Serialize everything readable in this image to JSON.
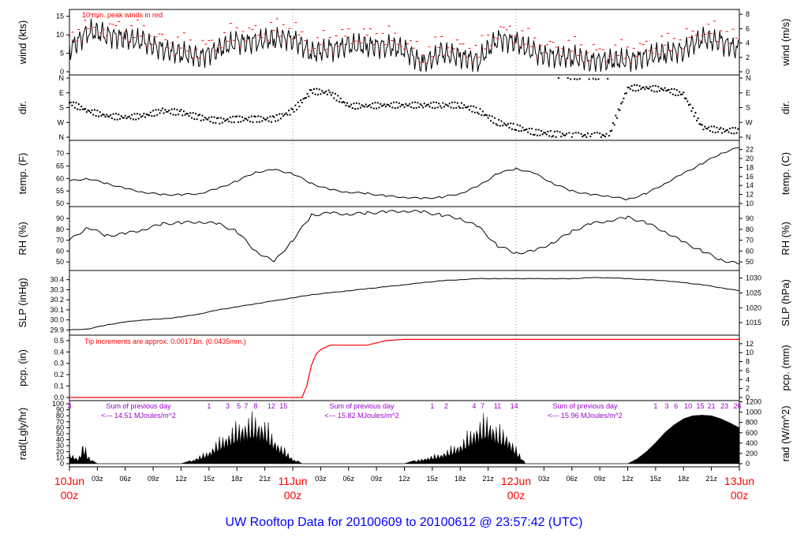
{
  "footer": {
    "title": "UW Rooftop Data for 20100609  to  20100612 @ 23:57:42  (UTC)"
  },
  "colors": {
    "accent_red": "#ff0000",
    "footer_blue": "#0000ff",
    "annotation_magenta": "#9900cc",
    "trace_black": "#000000"
  },
  "chart_data": [
    {
      "type": "line",
      "panel": "wind",
      "ylabel": "wind (kts)",
      "ylabel_right": "wind (m/s)",
      "ylim": [
        0,
        16
      ],
      "yticks": [
        0,
        5,
        10,
        15
      ],
      "yticks_right": [
        0,
        2,
        4,
        6,
        8
      ],
      "annotation": "10 min. peak winds in red",
      "x_hours": [
        0,
        2,
        4,
        6,
        8,
        10,
        12,
        14,
        16,
        18,
        20,
        22,
        24,
        26,
        28,
        30,
        32,
        34,
        36,
        38,
        40,
        42,
        44,
        46,
        48,
        50,
        52,
        54,
        56,
        58,
        60,
        62,
        64,
        66,
        68,
        70,
        72
      ],
      "series": [
        {
          "values": [
            6,
            11,
            10,
            9,
            8,
            6,
            5,
            4,
            6,
            8,
            8,
            9,
            9,
            5,
            6,
            7,
            7,
            7,
            6,
            2,
            5,
            4,
            3,
            9,
            8,
            5,
            4,
            4,
            3,
            3,
            3,
            4,
            5,
            6,
            9,
            8,
            6
          ]
        }
      ]
    },
    {
      "type": "scatter",
      "panel": "direction",
      "ylabel": "dir.",
      "ylabel_right": "dir.",
      "ytick_labels": [
        "N",
        "E",
        "S",
        "W",
        "N"
      ],
      "ytick_degrees": [
        0,
        90,
        180,
        270,
        360
      ],
      "x_hours": [
        0,
        2,
        4,
        6,
        8,
        10,
        12,
        14,
        16,
        18,
        20,
        22,
        24,
        26,
        28,
        30,
        32,
        34,
        36,
        38,
        40,
        42,
        44,
        46,
        48,
        50,
        52,
        54,
        56,
        58,
        60,
        62,
        64,
        66,
        68,
        70,
        72
      ],
      "series": [
        {
          "values": [
            150,
            200,
            230,
            240,
            230,
            200,
            210,
            240,
            260,
            250,
            250,
            250,
            200,
            80,
            90,
            170,
            170,
            165,
            165,
            165,
            165,
            165,
            200,
            270,
            300,
            330,
            340,
            350,
            350,
            350,
            60,
            60,
            70,
            100,
            300,
            320,
            320
          ]
        }
      ]
    },
    {
      "type": "line",
      "panel": "temperature",
      "ylabel": "temp. (F)",
      "ylabel_right": "temp. (C)",
      "ylim": [
        50,
        74
      ],
      "yticks": [
        50,
        55,
        60,
        65,
        70
      ],
      "yticks_right": [
        10,
        12,
        14,
        16,
        18,
        20,
        22
      ],
      "x_hours": [
        0,
        2,
        4,
        6,
        8,
        10,
        12,
        14,
        16,
        18,
        20,
        22,
        24,
        26,
        28,
        30,
        32,
        34,
        36,
        38,
        40,
        42,
        44,
        46,
        48,
        50,
        52,
        54,
        56,
        58,
        60,
        62,
        64,
        66,
        68,
        70,
        72
      ],
      "series": [
        {
          "values": [
            59,
            60,
            58,
            56,
            54.5,
            53.5,
            53.5,
            54,
            56,
            59,
            62.5,
            63.5,
            62,
            58,
            55.5,
            54.5,
            54,
            53,
            52.5,
            52,
            52.5,
            54,
            57,
            62,
            64,
            62,
            58,
            55,
            53.5,
            53,
            51.5,
            54,
            58,
            62,
            66,
            70,
            72.5
          ]
        }
      ]
    },
    {
      "type": "line",
      "panel": "relative_humidity",
      "ylabel": "RH (%)",
      "ylabel_right": "RH (%)",
      "ylim": [
        45,
        98
      ],
      "yticks": [
        50,
        60,
        70,
        80,
        90
      ],
      "yticks_right": [
        50,
        60,
        70,
        80,
        90
      ],
      "x_hours": [
        0,
        2,
        4,
        6,
        8,
        10,
        12,
        14,
        16,
        18,
        20,
        22,
        24,
        26,
        28,
        30,
        32,
        34,
        36,
        38,
        40,
        42,
        44,
        46,
        48,
        50,
        52,
        54,
        56,
        58,
        60,
        62,
        64,
        66,
        68,
        70,
        72
      ],
      "series": [
        {
          "values": [
            70,
            82,
            74,
            76,
            80,
            85,
            86,
            87,
            85,
            78,
            60,
            50,
            70,
            93,
            95,
            94,
            95,
            96,
            97,
            96,
            93,
            90,
            82,
            65,
            58,
            60,
            68,
            78,
            85,
            88,
            91,
            86,
            78,
            68,
            60,
            52,
            48
          ]
        }
      ]
    },
    {
      "type": "line",
      "panel": "sea_level_pressure",
      "ylabel": "SLP (inHg)",
      "ylabel_right": "SLP (hPa)",
      "ylim": [
        29.88,
        30.46
      ],
      "yticks": [
        29.9,
        30.0,
        30.1,
        30.2,
        30.3,
        30.4
      ],
      "ytick_labels": [
        "29.9",
        "30.0",
        "30.1",
        "30.2",
        "30.3",
        "30.4"
      ],
      "yticks_right_hpa": [
        1015,
        1020,
        1025,
        1030
      ],
      "x_hours": [
        0,
        2,
        4,
        6,
        8,
        10,
        12,
        14,
        16,
        18,
        20,
        22,
        24,
        26,
        28,
        30,
        32,
        34,
        36,
        38,
        40,
        42,
        44,
        46,
        48,
        50,
        52,
        54,
        56,
        58,
        60,
        62,
        64,
        66,
        68,
        70,
        72
      ],
      "series": [
        {
          "values": [
            29.9,
            29.91,
            29.95,
            29.98,
            30.0,
            30.01,
            30.03,
            30.06,
            30.1,
            30.13,
            30.16,
            30.19,
            30.22,
            30.25,
            30.27,
            30.29,
            30.31,
            30.33,
            30.35,
            30.37,
            30.39,
            30.4,
            30.41,
            30.41,
            30.41,
            30.41,
            30.41,
            30.41,
            30.42,
            30.42,
            30.41,
            30.4,
            30.39,
            30.37,
            30.35,
            30.32,
            30.29
          ]
        }
      ]
    },
    {
      "type": "line",
      "panel": "precipitation",
      "ylabel": "pcp. (in)",
      "ylabel_right": "pcp. (mm)",
      "ylim": [
        0,
        0.52
      ],
      "yticks": [
        0.0,
        0.1,
        0.2,
        0.3,
        0.4,
        0.5
      ],
      "ytick_labels": [
        "0.0",
        "0.1",
        "0.2",
        "0.3",
        "0.4",
        "0.5"
      ],
      "yticks_right": [
        0,
        2,
        4,
        6,
        8,
        10,
        12
      ],
      "annotation": "Tip increments are approx. 0.00171in. (0.0435mm.)",
      "x_hours": [
        0,
        24,
        25.0,
        25.5,
        26.0,
        26.5,
        27.0,
        28.0,
        30.0,
        32.0,
        33.0,
        34.0,
        36.0,
        72.0
      ],
      "series": [
        {
          "values": [
            0,
            0,
            0,
            0.1,
            0.28,
            0.38,
            0.42,
            0.46,
            0.46,
            0.46,
            0.48,
            0.5,
            0.51,
            0.51
          ]
        }
      ]
    },
    {
      "type": "area",
      "panel": "solar_radiation",
      "ylabel": "rad(Lgly/hr)",
      "ylabel_right": "rad (W/m^2)",
      "ylim": [
        0,
        100
      ],
      "yticks": [
        0,
        10,
        20,
        30,
        40,
        50,
        60,
        70,
        80,
        90,
        100
      ],
      "yticks_right": [
        0,
        200,
        400,
        600,
        800,
        1000,
        1200
      ],
      "daily_totals": [
        {
          "label": "Sum of previous day",
          "value": "<--- 14.51 MJoules/m^2"
        },
        {
          "label": "Sum of previous day",
          "value": "<--- 15.82 MJoules/m^2"
        },
        {
          "label": "Sum of previous day",
          "value": "<--- 15.96 MJoules/m^2"
        }
      ],
      "uv_index_labels": [
        {
          "hour": 0,
          "text": "3"
        },
        {
          "hour": 15,
          "text": "1"
        },
        {
          "hour": 17,
          "text": "3"
        },
        {
          "hour": 18.2,
          "text": "5"
        },
        {
          "hour": 19,
          "text": "7"
        },
        {
          "hour": 20,
          "text": "8"
        },
        {
          "hour": 21.7,
          "text": "12"
        },
        {
          "hour": 23,
          "text": "15"
        },
        {
          "hour": 39,
          "text": "1"
        },
        {
          "hour": 40.5,
          "text": "2"
        },
        {
          "hour": 43.5,
          "text": "4"
        },
        {
          "hour": 44.4,
          "text": "7"
        },
        {
          "hour": 46,
          "text": "11"
        },
        {
          "hour": 47.8,
          "text": "14"
        },
        {
          "hour": 63,
          "text": "1"
        },
        {
          "hour": 64.2,
          "text": "3"
        },
        {
          "hour": 65.2,
          "text": "6"
        },
        {
          "hour": 66.5,
          "text": "10"
        },
        {
          "hour": 67.8,
          "text": "15"
        },
        {
          "hour": 69,
          "text": "21"
        },
        {
          "hour": 70.4,
          "text": "23"
        },
        {
          "hour": 71.8,
          "text": "26"
        }
      ],
      "x_hours": [
        0,
        1,
        1.5,
        2,
        2.5,
        3,
        12,
        13,
        14,
        15,
        16,
        17,
        18,
        19,
        20,
        21,
        22,
        23,
        24,
        25,
        36,
        37,
        38,
        39,
        40,
        41,
        42,
        43,
        44,
        45,
        46,
        47,
        48,
        49,
        60,
        61,
        62,
        63,
        64,
        65,
        66,
        67,
        68,
        69,
        70,
        71,
        72
      ],
      "series": [
        {
          "values": [
            20,
            10,
            40,
            15,
            5,
            0,
            0,
            5,
            15,
            25,
            45,
            60,
            75,
            85,
            90,
            80,
            50,
            30,
            10,
            0,
            0,
            5,
            10,
            15,
            20,
            30,
            40,
            60,
            80,
            90,
            70,
            60,
            30,
            0,
            0,
            8,
            20,
            35,
            52,
            65,
            75,
            80,
            81,
            80,
            75,
            68,
            60
          ]
        }
      ]
    },
    {
      "type": "axis",
      "panel": "time_axis",
      "hour_tick_labels": [
        "03z",
        "06z",
        "09z",
        "12z",
        "15z",
        "18z",
        "21z",
        "03z",
        "06z",
        "09z",
        "12z",
        "15z",
        "18z",
        "21z",
        "03z",
        "06z",
        "09z",
        "12z",
        "15z",
        "18z",
        "21z"
      ],
      "hour_tick_hours": [
        3,
        6,
        9,
        12,
        15,
        18,
        21,
        27,
        30,
        33,
        36,
        39,
        42,
        45,
        51,
        54,
        57,
        60,
        63,
        66,
        69
      ],
      "date_labels": [
        {
          "hour": 0,
          "date": "10Jun",
          "time": "00z"
        },
        {
          "hour": 24,
          "date": "11Jun",
          "time": "00z"
        },
        {
          "hour": 48,
          "date": "12Jun",
          "time": "00z"
        },
        {
          "hour": 72,
          "date": "13Jun",
          "time": "00z"
        }
      ],
      "xlim": [
        0,
        72
      ]
    }
  ]
}
